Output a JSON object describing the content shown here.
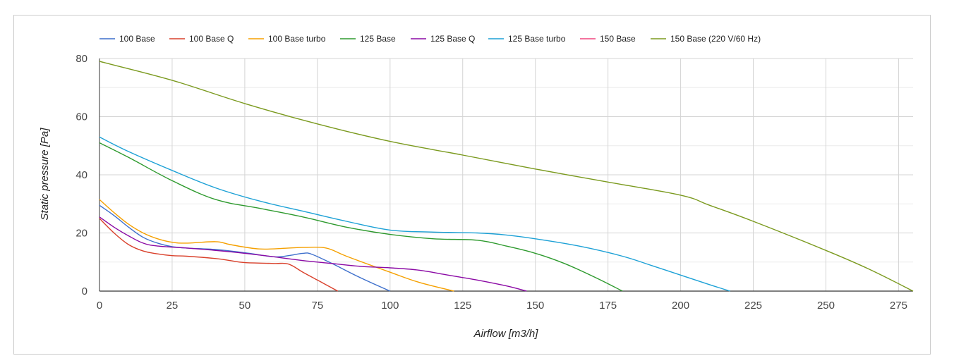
{
  "chart_data": {
    "type": "line",
    "title": "",
    "xlabel": "Airflow [m3/h]",
    "ylabel": "Static pressure [Pa]",
    "xlim": [
      0,
      280
    ],
    "ylim": [
      0,
      80
    ],
    "x_ticks": [
      "0",
      "25",
      "50",
      "75",
      "100",
      "125",
      "150",
      "175",
      "200",
      "225",
      "250",
      "275"
    ],
    "y_ticks": [
      "0",
      "20",
      "40",
      "60",
      "80"
    ],
    "grid": true,
    "legend_position": "top-left",
    "series": [
      {
        "name": "100 Base",
        "color": "#3d6fcc",
        "points": [
          [
            0,
            29.5
          ],
          [
            5,
            26
          ],
          [
            10,
            22
          ],
          [
            15,
            18.5
          ],
          [
            20,
            16.5
          ],
          [
            25,
            15.3
          ],
          [
            30,
            14.8
          ],
          [
            40,
            14.3
          ],
          [
            50,
            13.2
          ],
          [
            60,
            11.8
          ],
          [
            65,
            12.2
          ],
          [
            70,
            13
          ],
          [
            73,
            12.7
          ],
          [
            80,
            9.5
          ],
          [
            90,
            4.5
          ],
          [
            100,
            0
          ]
        ]
      },
      {
        "name": "100 Base Q",
        "color": "#d9402b",
        "points": [
          [
            0,
            25
          ],
          [
            5,
            20
          ],
          [
            10,
            16
          ],
          [
            15,
            13.8
          ],
          [
            20,
            12.8
          ],
          [
            25,
            12.2
          ],
          [
            30,
            12
          ],
          [
            40,
            11.2
          ],
          [
            45,
            10.5
          ],
          [
            50,
            9.8
          ],
          [
            60,
            9.5
          ],
          [
            65,
            9.3
          ],
          [
            70,
            6.5
          ],
          [
            75,
            3.8
          ],
          [
            82,
            0
          ]
        ]
      },
      {
        "name": "100 Base turbo",
        "color": "#f5a000",
        "points": [
          [
            0,
            31.5
          ],
          [
            5,
            27
          ],
          [
            10,
            23
          ],
          [
            15,
            20
          ],
          [
            20,
            18
          ],
          [
            25,
            16.8
          ],
          [
            30,
            16.5
          ],
          [
            40,
            17
          ],
          [
            45,
            16
          ],
          [
            55,
            14.5
          ],
          [
            65,
            14.8
          ],
          [
            70,
            15
          ],
          [
            78,
            14.8
          ],
          [
            85,
            12
          ],
          [
            100,
            6.5
          ],
          [
            110,
            3
          ],
          [
            122,
            0
          ]
        ]
      },
      {
        "name": "125 Base",
        "color": "#2e9a2e",
        "points": [
          [
            0,
            51
          ],
          [
            10,
            46
          ],
          [
            25,
            38
          ],
          [
            40,
            31.5
          ],
          [
            55,
            28.5
          ],
          [
            70,
            25.5
          ],
          [
            85,
            22
          ],
          [
            100,
            19.5
          ],
          [
            115,
            18
          ],
          [
            130,
            17.5
          ],
          [
            140,
            15.5
          ],
          [
            150,
            13
          ],
          [
            160,
            9.5
          ],
          [
            170,
            5
          ],
          [
            180,
            0
          ]
        ]
      },
      {
        "name": "125 Base Q",
        "color": "#8b0aa5",
        "points": [
          [
            0,
            25.5
          ],
          [
            5,
            22
          ],
          [
            10,
            19
          ],
          [
            15,
            16.5
          ],
          [
            20,
            15.5
          ],
          [
            30,
            14.8
          ],
          [
            40,
            14
          ],
          [
            50,
            13
          ],
          [
            60,
            11.8
          ],
          [
            70,
            10.5
          ],
          [
            80,
            9.5
          ],
          [
            90,
            8.5
          ],
          [
            100,
            8
          ],
          [
            110,
            7.2
          ],
          [
            120,
            5.5
          ],
          [
            130,
            3.8
          ],
          [
            140,
            1.8
          ],
          [
            147,
            0
          ]
        ]
      },
      {
        "name": "125 Base turbo",
        "color": "#1da1d6",
        "points": [
          [
            0,
            53
          ],
          [
            10,
            48
          ],
          [
            25,
            41.5
          ],
          [
            40,
            35.5
          ],
          [
            55,
            31
          ],
          [
            70,
            27.5
          ],
          [
            85,
            24
          ],
          [
            100,
            21
          ],
          [
            115,
            20.3
          ],
          [
            130,
            20
          ],
          [
            140,
            19.3
          ],
          [
            150,
            18
          ],
          [
            165,
            15.5
          ],
          [
            180,
            12
          ],
          [
            190,
            8.8
          ],
          [
            200,
            5.5
          ],
          [
            210,
            2.2
          ],
          [
            217,
            0
          ]
        ]
      },
      {
        "name": "150 Base",
        "color": "#f0457e",
        "points": []
      },
      {
        "name": "150 Base (220 V/60 Hz)",
        "color": "#7b9a1f",
        "points": [
          [
            0,
            79
          ],
          [
            25,
            72.5
          ],
          [
            50,
            64.5
          ],
          [
            75,
            57.5
          ],
          [
            100,
            51.5
          ],
          [
            125,
            46.8
          ],
          [
            150,
            42
          ],
          [
            175,
            37.5
          ],
          [
            200,
            33
          ],
          [
            210,
            29.5
          ],
          [
            225,
            24
          ],
          [
            250,
            14
          ],
          [
            265,
            7.5
          ],
          [
            280,
            0
          ]
        ]
      }
    ]
  }
}
